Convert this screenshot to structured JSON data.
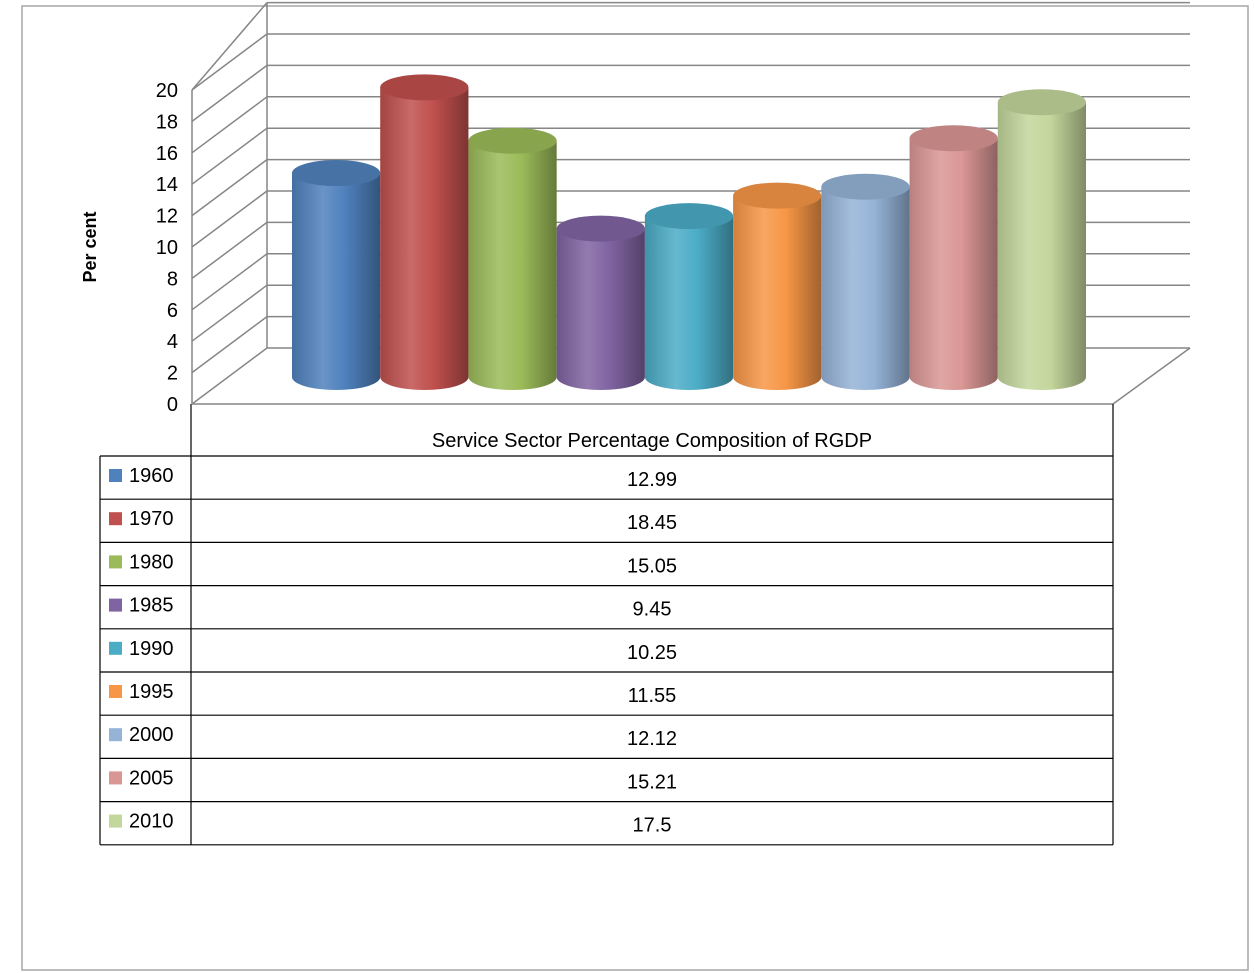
{
  "chart_data": {
    "type": "bar",
    "style": "3d-cylinder",
    "category": "Service Sector Percentage Composition of RGDP",
    "ylabel": "Per cent",
    "ylim": [
      0,
      20
    ],
    "ytick_step": 2,
    "grid": true,
    "legend_placement": "data-table-below",
    "series": [
      {
        "name": "1960",
        "value": 12.99,
        "value_label": "12.99",
        "color": "#4f81bd"
      },
      {
        "name": "1970",
        "value": 18.45,
        "value_label": "18.45",
        "color": "#c0504d"
      },
      {
        "name": "1980",
        "value": 15.05,
        "value_label": "15.05",
        "color": "#9bbb59"
      },
      {
        "name": "1985",
        "value": 9.45,
        "value_label": "9.45",
        "color": "#8064a2"
      },
      {
        "name": "1990",
        "value": 10.25,
        "value_label": "10.25",
        "color": "#4bacc6"
      },
      {
        "name": "1995",
        "value": 11.55,
        "value_label": "11.55",
        "color": "#f79646"
      },
      {
        "name": "2000",
        "value": 12.12,
        "value_label": "12.12",
        "color": "#95b3d7"
      },
      {
        "name": "2005",
        "value": 15.21,
        "value_label": "15.21",
        "color": "#d99694"
      },
      {
        "name": "2010",
        "value": 17.5,
        "value_label": "17.5",
        "color": "#c3d69b"
      }
    ]
  }
}
